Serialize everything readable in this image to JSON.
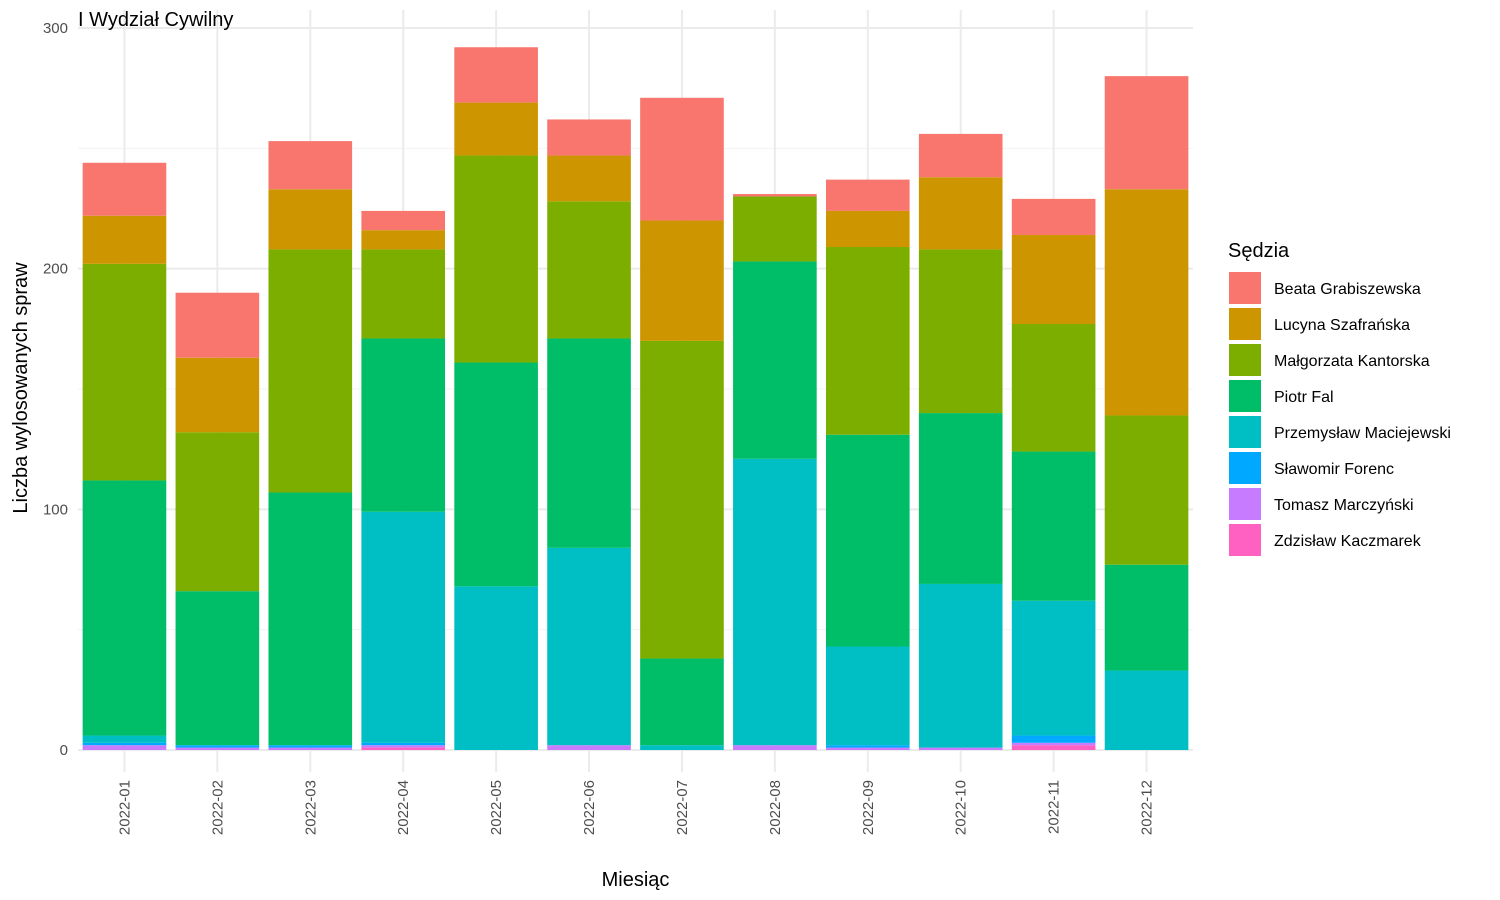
{
  "chart_data": {
    "type": "bar",
    "stacked": true,
    "title": "I Wydział Cywilny",
    "xlabel": "Miesiąc",
    "ylabel": "Liczba wylosowanych spraw",
    "ylim": [
      0,
      300
    ],
    "yticks": [
      0,
      100,
      200,
      300
    ],
    "grid": true,
    "legend_title": "Sędzia",
    "legend_position": "right",
    "categories": [
      "2022-01",
      "2022-02",
      "2022-03",
      "2022-04",
      "2022-05",
      "2022-06",
      "2022-07",
      "2022-08",
      "2022-09",
      "2022-10",
      "2022-11",
      "2022-12"
    ],
    "series": [
      {
        "name": "Zdzisław Kaczmarek",
        "color": "#FF61C3",
        "values": [
          0,
          0,
          0,
          1,
          0,
          0,
          0,
          0,
          0,
          0,
          2,
          0
        ]
      },
      {
        "name": "Tomasz Marczyński",
        "color": "#C77CFF",
        "values": [
          2,
          1,
          1,
          1,
          0,
          2,
          0,
          2,
          1,
          1,
          1,
          0
        ]
      },
      {
        "name": "Sławomir Forenc",
        "color": "#00A9FF",
        "values": [
          1,
          1,
          1,
          1,
          0,
          0,
          0,
          0,
          1,
          0,
          3,
          0
        ]
      },
      {
        "name": "Przemysław Maciejewski",
        "color": "#00BFC4",
        "values": [
          3,
          0,
          0,
          96,
          68,
          82,
          2,
          119,
          41,
          68,
          56,
          33
        ]
      },
      {
        "name": "Piotr Fal",
        "color": "#00BE67",
        "values": [
          106,
          64,
          105,
          72,
          93,
          87,
          36,
          82,
          88,
          71,
          62,
          44
        ]
      },
      {
        "name": "Małgorzata Kantorska",
        "color": "#7CAE00",
        "values": [
          90,
          66,
          101,
          37,
          86,
          57,
          132,
          27,
          78,
          68,
          53,
          62
        ]
      },
      {
        "name": "Lucyna Szafrańska",
        "color": "#CD9600",
        "values": [
          20,
          31,
          25,
          8,
          22,
          19,
          50,
          0,
          15,
          30,
          37,
          94
        ]
      },
      {
        "name": "Beata Grabiszewska",
        "color": "#F8766D",
        "values": [
          22,
          27,
          20,
          8,
          23,
          15,
          51,
          1,
          13,
          18,
          15,
          47
        ]
      }
    ],
    "legend_order": [
      "Beata Grabiszewska",
      "Lucyna Szafrańska",
      "Małgorzata Kantorska",
      "Piotr Fal",
      "Przemysław Maciejewski",
      "Sławomir Forenc",
      "Tomasz Marczyński",
      "Zdzisław Kaczmarek"
    ]
  }
}
